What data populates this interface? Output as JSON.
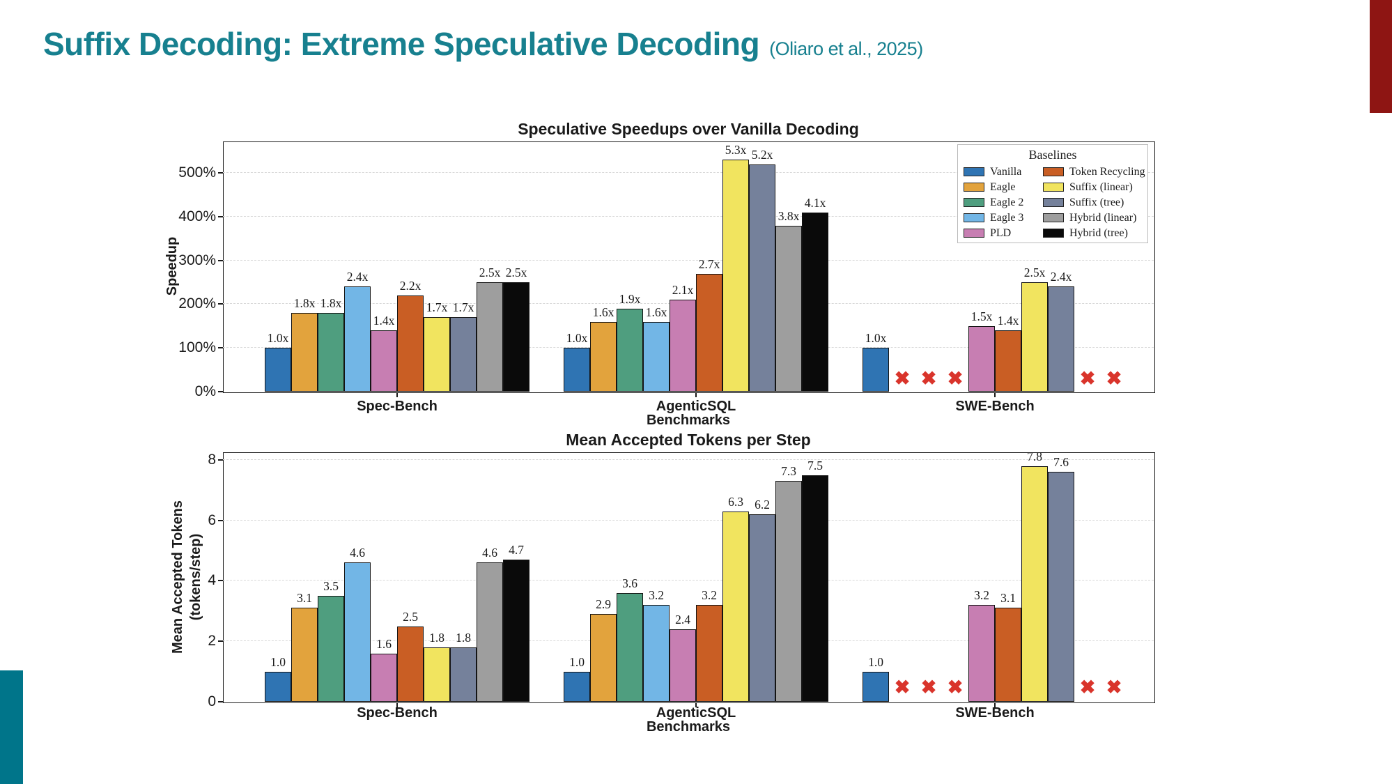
{
  "slide": {
    "title": "Suffix Decoding: Extreme Speculative Decoding",
    "citation": "(Oliaro et al., 2025)",
    "title_color": "#17808F",
    "accent_maroon": "#8E1513",
    "accent_teal": "#00758A",
    "missing_x_color": "#D9342B",
    "missing_x_glyph": "✖"
  },
  "legend": {
    "title": "Baselines",
    "position": "top-right"
  },
  "chart_data": [
    {
      "type": "bar",
      "title": "Speculative Speedups over Vanilla Decoding",
      "ylabel": "Speedup",
      "xlabel": "Benchmarks",
      "categories": [
        "Spec-Bench",
        "AgenticSQL",
        "SWE-Bench"
      ],
      "yticks": [
        0,
        1,
        2,
        3,
        4,
        5
      ],
      "ytick_labels": [
        "0%",
        "100%",
        "200%",
        "300%",
        "400%",
        "500%"
      ],
      "ylim": [
        0,
        5.72
      ],
      "grid": "dashed-horizontal",
      "value_suffix": "x",
      "series": [
        {
          "name": "Vanilla",
          "color": "#2F74B3",
          "values": [
            1.0,
            1.0,
            1.0
          ]
        },
        {
          "name": "Eagle",
          "color": "#E2A33D",
          "values": [
            1.8,
            1.6,
            null
          ]
        },
        {
          "name": "Eagle 2",
          "color": "#4F9E7F",
          "values": [
            1.8,
            1.9,
            null
          ]
        },
        {
          "name": "Eagle 3",
          "color": "#72B6E6",
          "values": [
            2.4,
            1.6,
            null
          ]
        },
        {
          "name": "PLD",
          "color": "#C77EB2",
          "values": [
            1.4,
            2.1,
            1.5
          ]
        },
        {
          "name": "Token Recycling",
          "color": "#C95E24",
          "values": [
            2.2,
            2.7,
            1.4
          ]
        },
        {
          "name": "Suffix (linear)",
          "color": "#F1E45F",
          "values": [
            1.7,
            5.3,
            2.5
          ]
        },
        {
          "name": "Suffix (tree)",
          "color": "#75819B",
          "values": [
            1.7,
            5.2,
            2.4
          ]
        },
        {
          "name": "Hybrid (linear)",
          "color": "#9E9E9E",
          "values": [
            2.5,
            3.8,
            null
          ]
        },
        {
          "name": "Hybrid (tree)",
          "color": "#0A0A0A",
          "values": [
            2.5,
            4.1,
            null
          ]
        }
      ]
    },
    {
      "type": "bar",
      "title": "Mean Accepted Tokens per Step",
      "ylabel_line1": "Mean Accepted Tokens",
      "ylabel_line2": "(tokens/step)",
      "xlabel": "Benchmarks",
      "categories": [
        "Spec-Bench",
        "AgenticSQL",
        "SWE-Bench"
      ],
      "yticks": [
        0,
        2,
        4,
        6,
        8
      ],
      "ytick_labels": [
        "0",
        "2",
        "4",
        "6",
        "8"
      ],
      "ylim": [
        0,
        8.25
      ],
      "grid": "dashed-horizontal",
      "value_suffix": "",
      "series": [
        {
          "name": "Vanilla",
          "color": "#2F74B3",
          "values": [
            1.0,
            1.0,
            1.0
          ]
        },
        {
          "name": "Eagle",
          "color": "#E2A33D",
          "values": [
            3.1,
            2.9,
            null
          ]
        },
        {
          "name": "Eagle 2",
          "color": "#4F9E7F",
          "values": [
            3.5,
            3.6,
            null
          ]
        },
        {
          "name": "Eagle 3",
          "color": "#72B6E6",
          "values": [
            4.6,
            3.2,
            null
          ]
        },
        {
          "name": "PLD",
          "color": "#C77EB2",
          "values": [
            1.6,
            2.4,
            3.2
          ]
        },
        {
          "name": "Token Recycling",
          "color": "#C95E24",
          "values": [
            2.5,
            3.2,
            3.1
          ]
        },
        {
          "name": "Suffix (linear)",
          "color": "#F1E45F",
          "values": [
            1.8,
            6.3,
            7.8
          ]
        },
        {
          "name": "Suffix (tree)",
          "color": "#75819B",
          "values": [
            1.8,
            6.2,
            7.6
          ]
        },
        {
          "name": "Hybrid (linear)",
          "color": "#9E9E9E",
          "values": [
            4.6,
            7.3,
            null
          ]
        },
        {
          "name": "Hybrid (tree)",
          "color": "#0A0A0A",
          "values": [
            4.7,
            7.5,
            null
          ]
        }
      ]
    }
  ]
}
